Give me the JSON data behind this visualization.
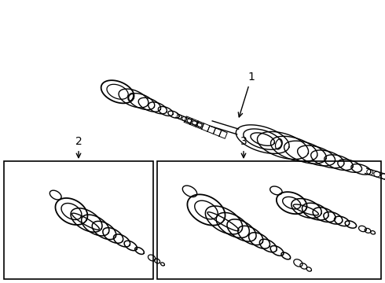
{
  "background_color": "#ffffff",
  "line_color": "#000000",
  "label1": "1",
  "label2": "2",
  "label3": "3",
  "fig_width": 4.9,
  "fig_height": 3.6,
  "dpi": 100
}
